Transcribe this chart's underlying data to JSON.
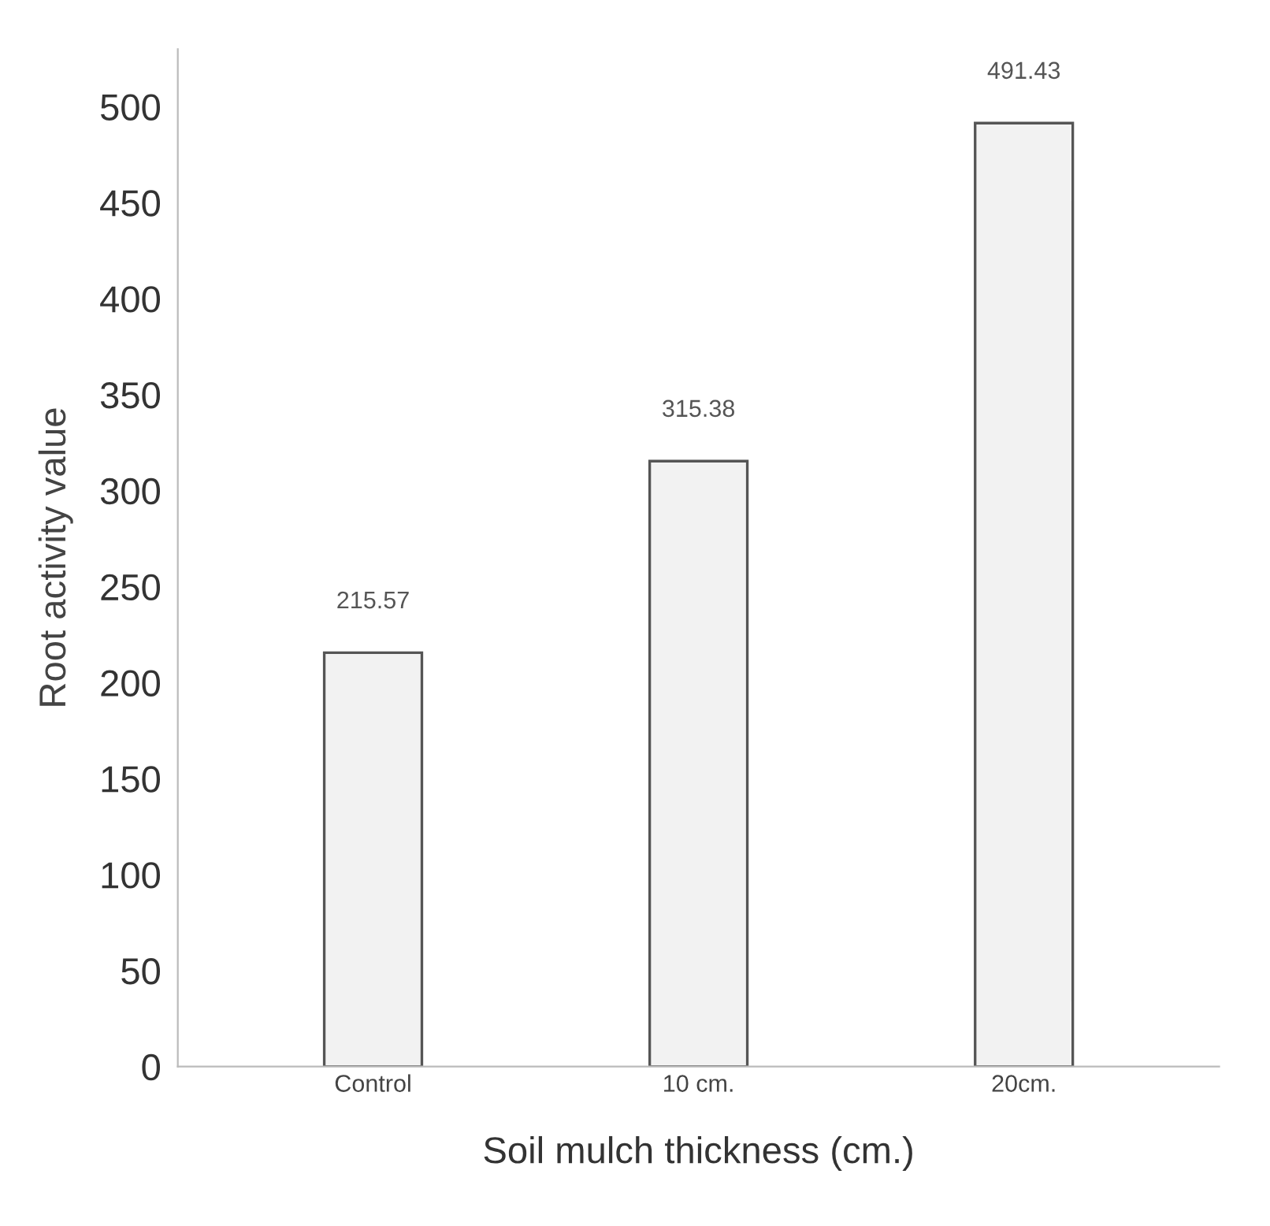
{
  "chart_data": {
    "type": "bar",
    "xlabel": "Soil mulch thickness (cm.)",
    "ylabel": "Root activity value",
    "categories": [
      "Control",
      "10 cm.",
      "20cm."
    ],
    "values": [
      215.57,
      315.38,
      491.43
    ],
    "color": "#f2f2f2",
    "data_labels": true,
    "ylim": [
      0,
      530
    ],
    "yticks": [
      0,
      50,
      100,
      150,
      200,
      250,
      300,
      350,
      400,
      450,
      500
    ],
    "grid": false
  }
}
